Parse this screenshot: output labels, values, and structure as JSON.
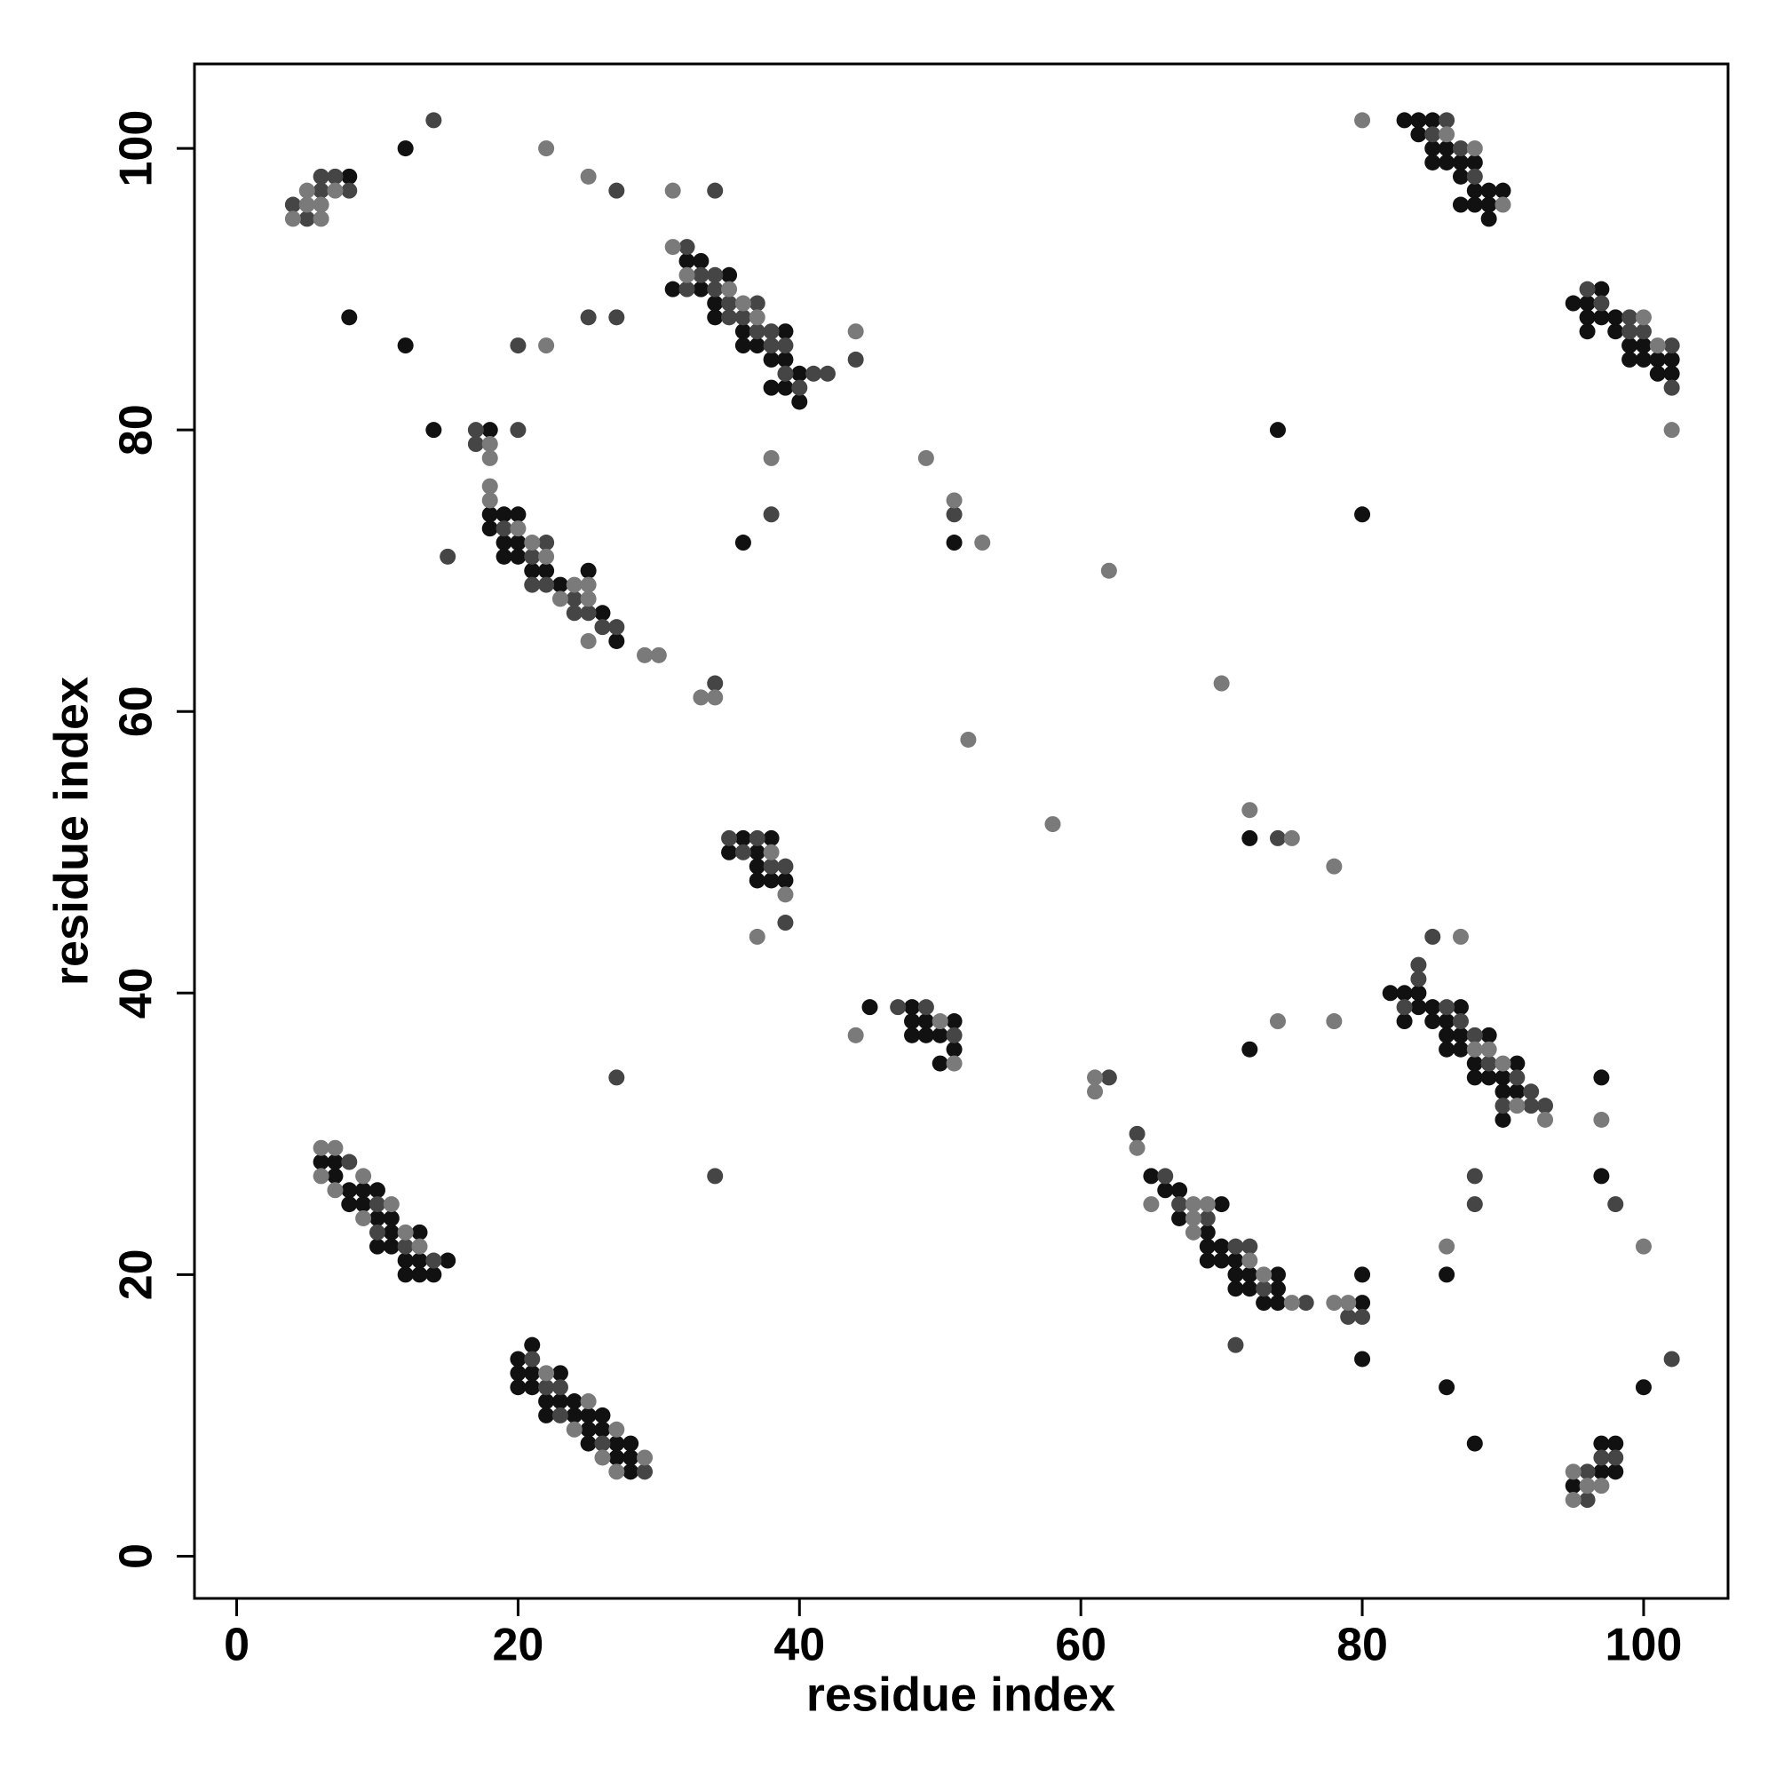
{
  "chart_data": {
    "type": "scatter",
    "x_label": "residue index",
    "y_label": "residue index",
    "xlim": [
      -3,
      106
    ],
    "ylim": [
      -3,
      106
    ],
    "xticks": [
      0,
      20,
      40,
      60,
      80,
      100
    ],
    "yticks": [
      0,
      20,
      40,
      60,
      80,
      100
    ],
    "series": [
      {
        "color": "#111111",
        "x": [
          8,
          12,
          8,
          12,
          14,
          31,
          32,
          33,
          33,
          34,
          34,
          35,
          36,
          36,
          37,
          38,
          39,
          39,
          38,
          39,
          40,
          40,
          18,
          18,
          18,
          19,
          19,
          19,
          20,
          20,
          20,
          21,
          22,
          23,
          25,
          26,
          27,
          36,
          51,
          72,
          74,
          80,
          35,
          36,
          37,
          37,
          37,
          38,
          38,
          39,
          45,
          48,
          48,
          48,
          49,
          49,
          50,
          50,
          51,
          51,
          6,
          7,
          7,
          8,
          8,
          9,
          9,
          10,
          10,
          10,
          11,
          11,
          11,
          12,
          12,
          13,
          13,
          13,
          14,
          15,
          20,
          20,
          20,
          21,
          21,
          21,
          22,
          22,
          23,
          23,
          24,
          24,
          25,
          25,
          25,
          26,
          26,
          27,
          27,
          28,
          28,
          28,
          65,
          66,
          67,
          67,
          69,
          69,
          69,
          70,
          70,
          70,
          71,
          71,
          71,
          72,
          72,
          73,
          74,
          74,
          74,
          80,
          80,
          80,
          72,
          82,
          83,
          83,
          84,
          84,
          85,
          85,
          86,
          86,
          86,
          87,
          87,
          87,
          88,
          88,
          89,
          89,
          90,
          90,
          90,
          91,
          91,
          97,
          97,
          86,
          86,
          88,
          100,
          95,
          97,
          97,
          98,
          98,
          83,
          84,
          84,
          85,
          85,
          85,
          86,
          86,
          87,
          87,
          87,
          88,
          88,
          88,
          89,
          89,
          89,
          90,
          95,
          96,
          96,
          96,
          97,
          97,
          98,
          98,
          99,
          99,
          100,
          100,
          101,
          101,
          102,
          102
        ],
        "values": [
          98,
          100,
          88,
          86,
          80,
          90,
          92,
          92,
          90,
          89,
          88,
          91,
          87,
          86,
          86,
          85,
          87,
          85,
          83,
          83,
          84,
          82,
          80,
          74,
          73,
          74,
          72,
          71,
          74,
          72,
          71,
          70,
          70,
          69,
          70,
          67,
          65,
          72,
          72,
          51,
          80,
          74,
          50,
          51,
          50,
          49,
          48,
          51,
          48,
          48,
          39,
          39,
          38,
          37,
          38,
          37,
          37,
          35,
          38,
          36,
          28,
          28,
          27,
          26,
          25,
          26,
          25,
          26,
          24,
          22,
          24,
          23,
          22,
          21,
          20,
          23,
          21,
          20,
          20,
          21,
          14,
          13,
          12,
          15,
          13,
          12,
          11,
          10,
          13,
          11,
          11,
          10,
          10,
          9,
          8,
          10,
          9,
          8,
          7,
          8,
          7,
          6,
          27,
          26,
          26,
          24,
          23,
          22,
          21,
          25,
          22,
          21,
          21,
          20,
          19,
          20,
          19,
          18,
          20,
          19,
          18,
          20,
          18,
          14,
          36,
          40,
          40,
          38,
          40,
          39,
          39,
          38,
          38,
          37,
          36,
          39,
          37,
          36,
          35,
          34,
          37,
          34,
          34,
          33,
          31,
          35,
          33,
          34,
          27,
          20,
          12,
          8,
          12,
          5,
          8,
          6,
          8,
          6,
          102,
          102,
          101,
          102,
          100,
          99,
          100,
          99,
          99,
          98,
          96,
          99,
          97,
          96,
          97,
          96,
          95,
          97,
          89,
          89,
          88,
          87,
          90,
          88,
          88,
          87,
          86,
          85,
          86,
          85,
          85,
          84,
          85,
          84
        ]
      },
      {
        "color": "#454545",
        "x": [
          4,
          5,
          6,
          6,
          7,
          8,
          14,
          27,
          34,
          20,
          25,
          27,
          20,
          15,
          32,
          32,
          33,
          34,
          34,
          35,
          35,
          36,
          37,
          37,
          38,
          38,
          39,
          39,
          40,
          41,
          42,
          44,
          17,
          17,
          19,
          21,
          21,
          22,
          22,
          24,
          24,
          25,
          26,
          27,
          34,
          38,
          51,
          74,
          35,
          36,
          37,
          38,
          39,
          39,
          47,
          49,
          51,
          27,
          34,
          62,
          64,
          8,
          10,
          10,
          12,
          14,
          21,
          22,
          23,
          23,
          26,
          29,
          66,
          67,
          69,
          71,
          72,
          73,
          76,
          79,
          80,
          71,
          83,
          84,
          84,
          85,
          86,
          87,
          88,
          89,
          90,
          91,
          92,
          92,
          93,
          98,
          88,
          88,
          102,
          96,
          96,
          97,
          98,
          85,
          86,
          87,
          88,
          96,
          97,
          99,
          99,
          100,
          102,
          102
        ],
        "values": [
          96,
          95,
          97,
          98,
          98,
          97,
          102,
          97,
          97,
          86,
          88,
          88,
          80,
          71,
          93,
          90,
          91,
          91,
          90,
          89,
          88,
          88,
          89,
          87,
          87,
          86,
          86,
          84,
          83,
          84,
          84,
          85,
          80,
          79,
          73,
          71,
          69,
          72,
          69,
          68,
          67,
          67,
          66,
          66,
          62,
          74,
          74,
          51,
          51,
          50,
          51,
          49,
          49,
          45,
          39,
          39,
          37,
          34,
          27,
          34,
          30,
          28,
          25,
          23,
          22,
          21,
          14,
          12,
          12,
          10,
          8,
          6,
          27,
          25,
          24,
          22,
          22,
          19,
          18,
          17,
          17,
          15,
          39,
          42,
          41,
          44,
          39,
          38,
          37,
          35,
          32,
          34,
          33,
          32,
          32,
          25,
          27,
          25,
          14,
          6,
          4,
          7,
          7,
          101,
          102,
          100,
          98,
          90,
          89,
          88,
          87,
          87,
          86,
          83
        ]
      },
      {
        "color": "#7a7a7a",
        "x": [
          4,
          5,
          5,
          6,
          6,
          7,
          22,
          25,
          31,
          22,
          31,
          32,
          35,
          36,
          37,
          44,
          18,
          18,
          18,
          18,
          20,
          21,
          22,
          23,
          24,
          25,
          25,
          25,
          29,
          30,
          33,
          34,
          38,
          49,
          51,
          53,
          62,
          70,
          52,
          58,
          72,
          75,
          78,
          80,
          38,
          39,
          37,
          44,
          50,
          51,
          61,
          61,
          64,
          6,
          6,
          7,
          7,
          9,
          9,
          11,
          12,
          13,
          22,
          24,
          25,
          26,
          27,
          27,
          29,
          65,
          68,
          68,
          68,
          69,
          72,
          73,
          75,
          78,
          79,
          74,
          78,
          87,
          88,
          89,
          90,
          91,
          93,
          97,
          86,
          100,
          95,
          95,
          96,
          97,
          86,
          88,
          90,
          100,
          101,
          102
        ],
        "values": [
          95,
          96,
          97,
          96,
          95,
          97,
          100,
          98,
          97,
          86,
          93,
          91,
          90,
          89,
          88,
          87,
          79,
          78,
          76,
          75,
          73,
          72,
          71,
          68,
          69,
          69,
          68,
          65,
          64,
          64,
          61,
          61,
          78,
          78,
          75,
          72,
          70,
          62,
          58,
          52,
          53,
          51,
          49,
          102,
          50,
          47,
          44,
          37,
          38,
          35,
          34,
          33,
          29,
          29,
          27,
          29,
          26,
          27,
          24,
          25,
          23,
          22,
          13,
          9,
          11,
          7,
          9,
          6,
          7,
          25,
          25,
          24,
          23,
          25,
          21,
          20,
          18,
          18,
          18,
          38,
          38,
          44,
          36,
          36,
          35,
          32,
          31,
          31,
          22,
          22,
          6,
          4,
          5,
          5,
          101,
          100,
          96,
          88,
          86,
          80
        ]
      }
    ]
  }
}
